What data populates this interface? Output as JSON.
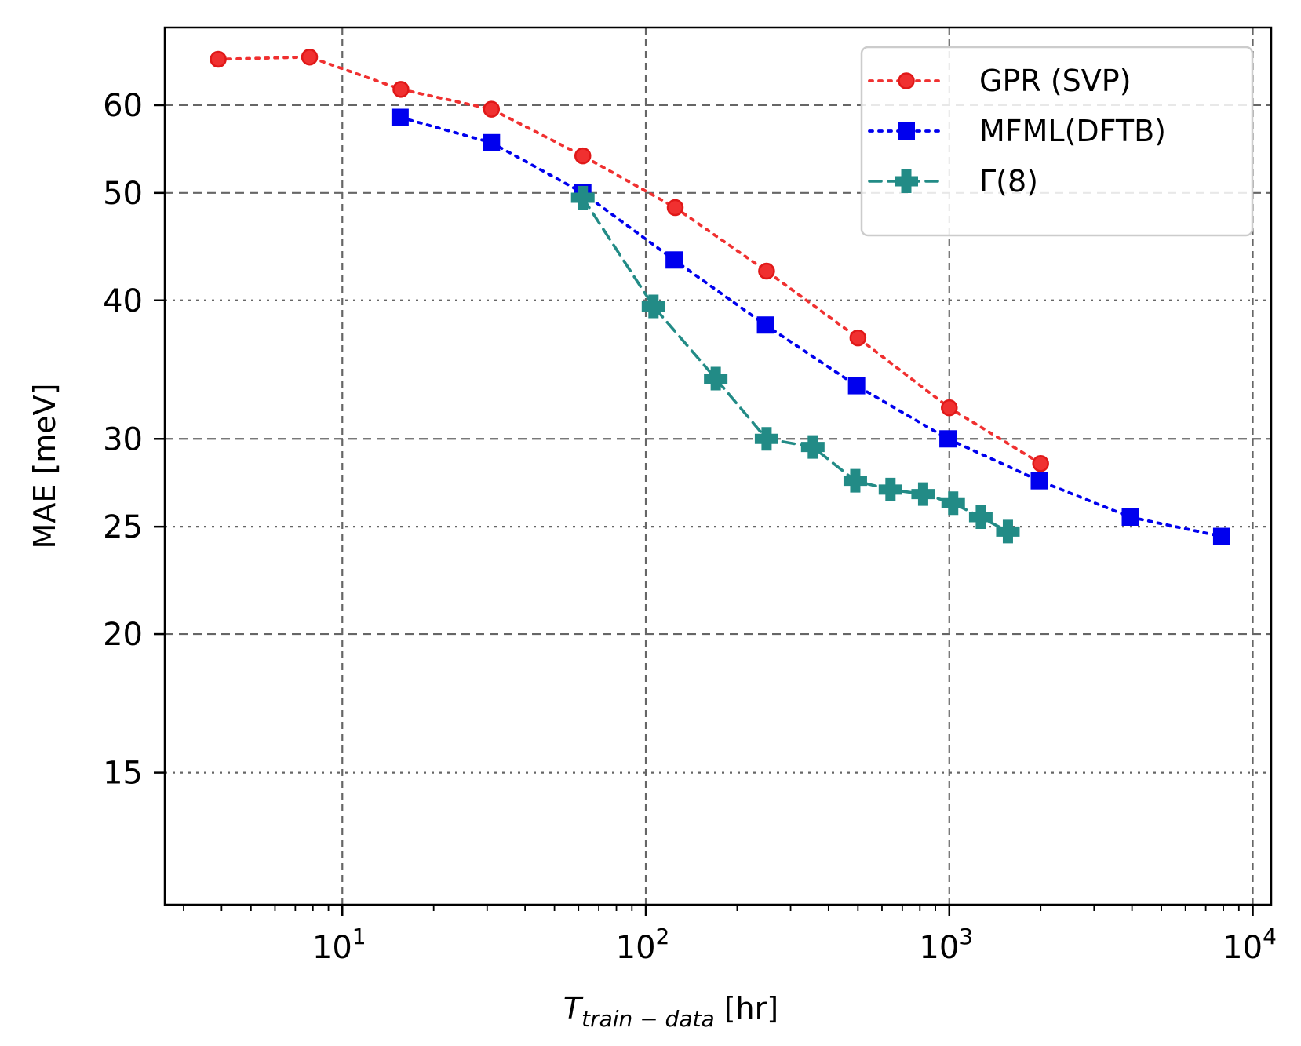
{
  "chart_data": {
    "type": "line",
    "xlabel": {
      "main": "T",
      "sub": "train − data",
      "unit": " [hr]"
    },
    "ylabel": "MAE [meV]",
    "x_scale": "log",
    "y_scale": "log",
    "xlim": [
      2.6,
      11500
    ],
    "ylim": [
      11.4,
      70.5
    ],
    "x_major_ticks": [
      {
        "value": 10,
        "base": "10",
        "exp": "1"
      },
      {
        "value": 100,
        "base": "10",
        "exp": "2"
      },
      {
        "value": 1000,
        "base": "10",
        "exp": "3"
      },
      {
        "value": 10000,
        "base": "10",
        "exp": "4"
      }
    ],
    "y_ticks": [
      {
        "value": 60,
        "label": "60",
        "grid": "dashed"
      },
      {
        "value": 50,
        "label": "50",
        "grid": "dashed"
      },
      {
        "value": 40,
        "label": "40",
        "grid": "dotted"
      },
      {
        "value": 30,
        "label": "30",
        "grid": "dashed"
      },
      {
        "value": 25,
        "label": "25",
        "grid": "dotted"
      },
      {
        "value": 20,
        "label": "20",
        "grid": "dashed"
      },
      {
        "value": 15,
        "label": "15",
        "grid": "dotted"
      }
    ],
    "grid": true,
    "legend_position": "top-right",
    "series": [
      {
        "name": "GPR (SVP)",
        "color": "#f03030",
        "line_style": "dotted",
        "marker": "circle",
        "x": [
          3.9,
          7.8,
          15.6,
          31,
          62,
          125,
          250,
          500,
          1000,
          2000
        ],
        "y": [
          66.0,
          66.3,
          62.0,
          59.5,
          54.0,
          48.5,
          42.5,
          37.0,
          32.0,
          28.5
        ]
      },
      {
        "name": "MFML(DFTB)",
        "color": "#0000ee",
        "line_style": "dotted",
        "marker": "square",
        "x": [
          15.5,
          31,
          62,
          124,
          248,
          495,
          990,
          1980,
          3950,
          7900
        ],
        "y": [
          58.5,
          55.5,
          50.0,
          43.5,
          38.0,
          33.5,
          30.0,
          27.5,
          25.5,
          24.5
        ]
      },
      {
        "name": "Γ(8)",
        "color": "#228b86",
        "line_style": "dashed",
        "marker": "plus",
        "x": [
          62,
          106,
          170,
          250,
          355,
          490,
          640,
          820,
          1030,
          1270,
          1560
        ],
        "y": [
          49.5,
          39.5,
          34.0,
          30.0,
          29.5,
          27.5,
          27.0,
          26.75,
          26.25,
          25.5,
          24.75
        ]
      }
    ]
  }
}
